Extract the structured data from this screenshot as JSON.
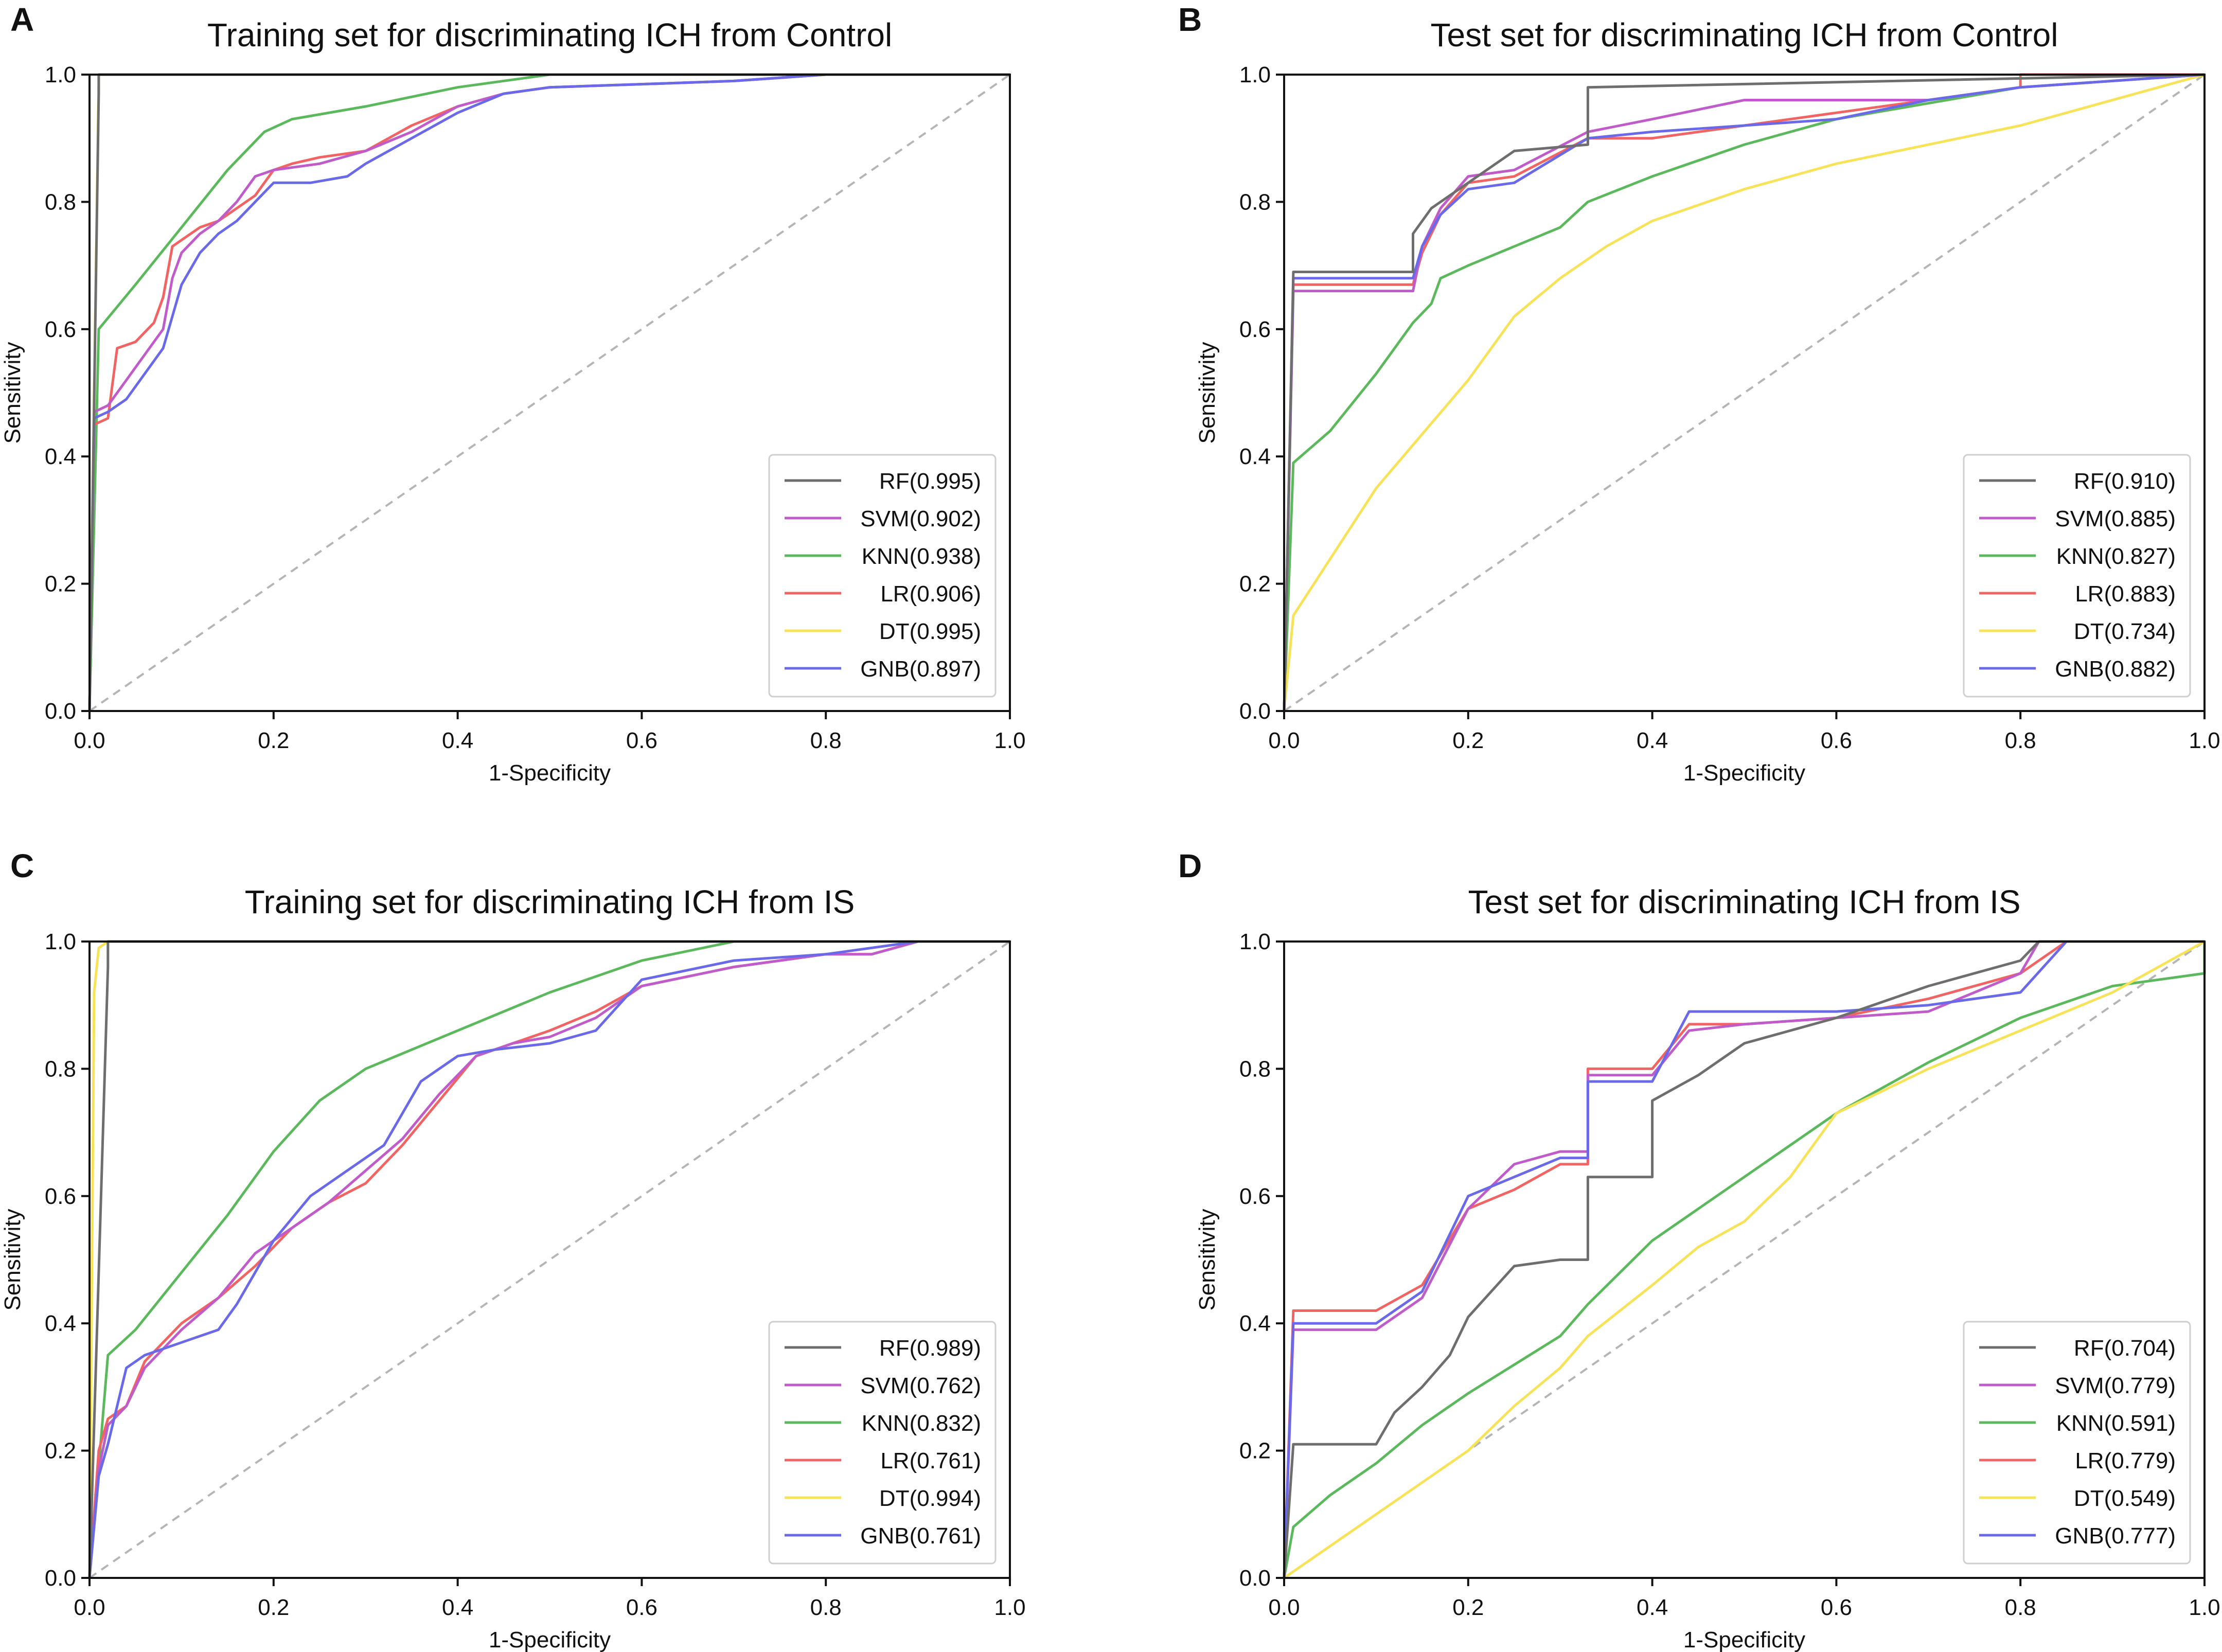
{
  "figure": {
    "panels": [
      "A",
      "B",
      "C",
      "D"
    ]
  },
  "colors": {
    "RF": "#6e6e6e",
    "SVM": "#c05cc9",
    "KNN": "#5cb85c",
    "LR": "#f06464",
    "DT": "#f7e35a",
    "GNB": "#6a6ae8",
    "diagonal": "#b5b5b5",
    "axis": "#111111"
  },
  "chart_data": [
    {
      "panel": "A",
      "type": "line",
      "title": "Training set for discriminating ICH from Control",
      "xlabel": "1-Specificity",
      "ylabel": "Sensitivity",
      "xlim": [
        0.0,
        1.0
      ],
      "ylim": [
        0.0,
        1.0
      ],
      "xticks": [
        "0.0",
        "0.2",
        "0.4",
        "0.6",
        "0.8",
        "1.0"
      ],
      "yticks": [
        "0.0",
        "0.2",
        "0.4",
        "0.6",
        "0.8",
        "1.0"
      ],
      "legend_position": "bottom-right",
      "legend": [
        "RF(0.995)",
        "SVM(0.902)",
        "KNN(0.938)",
        "LR(0.906)",
        "DT(0.995)",
        "GNB(0.897)"
      ],
      "series": [
        {
          "name": "RF",
          "x": [
            0,
            0.01,
            0.01,
            1
          ],
          "y": [
            0,
            0.97,
            1,
            1
          ]
        },
        {
          "name": "SVM",
          "x": [
            0,
            0.005,
            0.02,
            0.04,
            0.06,
            0.08,
            0.09,
            0.1,
            0.12,
            0.14,
            0.16,
            0.18,
            0.2,
            0.25,
            0.3,
            0.35,
            0.4,
            0.45,
            0.5,
            0.6,
            0.7,
            0.75,
            0.8,
            1
          ],
          "y": [
            0,
            0.47,
            0.48,
            0.52,
            0.56,
            0.6,
            0.68,
            0.72,
            0.75,
            0.77,
            0.8,
            0.84,
            0.85,
            0.86,
            0.88,
            0.91,
            0.95,
            0.97,
            0.98,
            0.985,
            0.99,
            0.995,
            1,
            1
          ]
        },
        {
          "name": "KNN",
          "x": [
            0,
            0.01,
            0.05,
            0.1,
            0.15,
            0.19,
            0.22,
            0.3,
            0.4,
            0.5,
            0.6,
            1
          ],
          "y": [
            0,
            0.6,
            0.67,
            0.76,
            0.85,
            0.91,
            0.93,
            0.95,
            0.98,
            1,
            1,
            1
          ]
        },
        {
          "name": "LR",
          "x": [
            0,
            0.005,
            0.02,
            0.03,
            0.05,
            0.07,
            0.08,
            0.09,
            0.1,
            0.12,
            0.14,
            0.16,
            0.18,
            0.2,
            0.22,
            0.25,
            0.3,
            0.35,
            0.4,
            0.45,
            0.5,
            0.6,
            0.7,
            0.8,
            1
          ],
          "y": [
            0,
            0.45,
            0.46,
            0.57,
            0.58,
            0.61,
            0.65,
            0.73,
            0.74,
            0.76,
            0.77,
            0.79,
            0.81,
            0.85,
            0.86,
            0.87,
            0.88,
            0.92,
            0.95,
            0.97,
            0.98,
            0.985,
            0.99,
            1,
            1
          ]
        },
        {
          "name": "DT",
          "x": [
            0,
            0.01,
            0.01,
            1
          ],
          "y": [
            0,
            0.99,
            1,
            1
          ]
        },
        {
          "name": "GNB",
          "x": [
            0,
            0.005,
            0.02,
            0.04,
            0.06,
            0.08,
            0.1,
            0.12,
            0.14,
            0.16,
            0.18,
            0.2,
            0.24,
            0.28,
            0.3,
            0.35,
            0.4,
            0.45,
            0.5,
            0.6,
            0.7,
            0.8,
            1
          ],
          "y": [
            0,
            0.46,
            0.47,
            0.49,
            0.53,
            0.57,
            0.67,
            0.72,
            0.75,
            0.77,
            0.8,
            0.83,
            0.83,
            0.84,
            0.86,
            0.9,
            0.94,
            0.97,
            0.98,
            0.985,
            0.99,
            1,
            1
          ]
        },
        {
          "name": "diagonal",
          "x": [
            0,
            1
          ],
          "y": [
            0,
            1
          ]
        }
      ]
    },
    {
      "panel": "B",
      "type": "line",
      "title": "Test set for discriminating ICH from Control",
      "xlabel": "1-Specificity",
      "ylabel": "Sensitivity",
      "xlim": [
        0.0,
        1.0
      ],
      "ylim": [
        0.0,
        1.0
      ],
      "xticks": [
        "0.0",
        "0.2",
        "0.4",
        "0.6",
        "0.8",
        "1.0"
      ],
      "yticks": [
        "0.0",
        "0.2",
        "0.4",
        "0.6",
        "0.8",
        "1.0"
      ],
      "legend_position": "bottom-right",
      "legend": [
        "RF(0.910)",
        "SVM(0.885)",
        "KNN(0.827)",
        "LR(0.883)",
        "DT(0.734)",
        "GNB(0.882)"
      ],
      "series": [
        {
          "name": "RF",
          "x": [
            0,
            0.01,
            0.14,
            0.14,
            0.16,
            0.18,
            0.2,
            0.25,
            0.33,
            0.33,
            1
          ],
          "y": [
            0,
            0.69,
            0.69,
            0.75,
            0.79,
            0.81,
            0.83,
            0.88,
            0.89,
            0.98,
            1
          ]
        },
        {
          "name": "SVM",
          "x": [
            0,
            0.01,
            0.14,
            0.15,
            0.17,
            0.2,
            0.25,
            0.33,
            0.4,
            0.5,
            0.7,
            0.8,
            1
          ],
          "y": [
            0,
            0.66,
            0.66,
            0.73,
            0.79,
            0.84,
            0.85,
            0.91,
            0.93,
            0.96,
            0.96,
            0.98,
            1
          ]
        },
        {
          "name": "KNN",
          "x": [
            0,
            0.01,
            0.05,
            0.1,
            0.14,
            0.16,
            0.17,
            0.2,
            0.25,
            0.3,
            0.33,
            0.4,
            0.5,
            0.6,
            0.8,
            1
          ],
          "y": [
            0,
            0.39,
            0.44,
            0.53,
            0.61,
            0.64,
            0.68,
            0.7,
            0.73,
            0.76,
            0.8,
            0.84,
            0.89,
            0.93,
            0.98,
            1
          ]
        },
        {
          "name": "LR",
          "x": [
            0,
            0.01,
            0.14,
            0.15,
            0.17,
            0.2,
            0.25,
            0.33,
            0.4,
            0.5,
            0.6,
            0.7,
            0.8,
            0.8,
            1
          ],
          "y": [
            0,
            0.67,
            0.67,
            0.72,
            0.78,
            0.83,
            0.84,
            0.9,
            0.9,
            0.92,
            0.94,
            0.96,
            0.98,
            1,
            1
          ]
        },
        {
          "name": "DT",
          "x": [
            0,
            0.01,
            0.1,
            0.2,
            0.25,
            0.3,
            0.35,
            0.4,
            0.5,
            0.6,
            0.8,
            1
          ],
          "y": [
            0,
            0.15,
            0.35,
            0.52,
            0.62,
            0.68,
            0.73,
            0.77,
            0.82,
            0.86,
            0.92,
            1
          ]
        },
        {
          "name": "GNB",
          "x": [
            0,
            0.01,
            0.14,
            0.15,
            0.17,
            0.2,
            0.25,
            0.33,
            0.4,
            0.5,
            0.6,
            0.7,
            0.8,
            1
          ],
          "y": [
            0,
            0.68,
            0.68,
            0.73,
            0.78,
            0.82,
            0.83,
            0.9,
            0.91,
            0.92,
            0.93,
            0.96,
            0.98,
            1
          ]
        },
        {
          "name": "diagonal",
          "x": [
            0,
            1
          ],
          "y": [
            0,
            1
          ]
        }
      ]
    },
    {
      "panel": "C",
      "type": "line",
      "title": "Training set for discriminating ICH from IS",
      "xlabel": "1-Specificity",
      "ylabel": "Sensitivity",
      "xlim": [
        0.0,
        1.0
      ],
      "ylim": [
        0.0,
        1.0
      ],
      "xticks": [
        "0.0",
        "0.2",
        "0.4",
        "0.6",
        "0.8",
        "1.0"
      ],
      "yticks": [
        "0.0",
        "0.2",
        "0.4",
        "0.6",
        "0.8",
        "1.0"
      ],
      "legend_position": "bottom-right",
      "legend": [
        "RF(0.989)",
        "SVM(0.762)",
        "KNN(0.832)",
        "LR(0.761)",
        "DT(0.994)",
        "GNB(0.761)"
      ],
      "series": [
        {
          "name": "RF",
          "x": [
            0,
            0.02,
            0.02,
            1
          ],
          "y": [
            0,
            0.96,
            1,
            1
          ]
        },
        {
          "name": "SVM",
          "x": [
            0,
            0.01,
            0.02,
            0.04,
            0.06,
            0.1,
            0.14,
            0.18,
            0.22,
            0.26,
            0.3,
            0.34,
            0.38,
            0.42,
            0.46,
            0.5,
            0.55,
            0.6,
            0.7,
            0.8,
            0.85,
            0.9,
            1
          ],
          "y": [
            0,
            0.17,
            0.24,
            0.27,
            0.33,
            0.39,
            0.44,
            0.51,
            0.55,
            0.59,
            0.64,
            0.69,
            0.76,
            0.82,
            0.84,
            0.85,
            0.88,
            0.93,
            0.96,
            0.98,
            0.98,
            1,
            1
          ]
        },
        {
          "name": "KNN",
          "x": [
            0,
            0.02,
            0.05,
            0.1,
            0.15,
            0.2,
            0.25,
            0.3,
            0.4,
            0.5,
            0.6,
            0.7,
            0.8,
            1
          ],
          "y": [
            0,
            0.35,
            0.39,
            0.48,
            0.57,
            0.67,
            0.75,
            0.8,
            0.86,
            0.92,
            0.97,
            1,
            1,
            1
          ]
        },
        {
          "name": "LR",
          "x": [
            0,
            0.01,
            0.02,
            0.04,
            0.06,
            0.1,
            0.14,
            0.18,
            0.22,
            0.26,
            0.3,
            0.34,
            0.38,
            0.42,
            0.46,
            0.5,
            0.55,
            0.6,
            0.7,
            0.8,
            0.85,
            0.9,
            1
          ],
          "y": [
            0,
            0.2,
            0.25,
            0.27,
            0.34,
            0.4,
            0.44,
            0.49,
            0.55,
            0.59,
            0.62,
            0.68,
            0.75,
            0.82,
            0.84,
            0.86,
            0.89,
            0.93,
            0.96,
            0.98,
            0.98,
            1,
            1
          ]
        },
        {
          "name": "DT",
          "x": [
            0,
            0.005,
            0.01,
            0.02,
            1
          ],
          "y": [
            0,
            0.92,
            0.99,
            1,
            1
          ]
        },
        {
          "name": "GNB",
          "x": [
            0,
            0.01,
            0.02,
            0.04,
            0.06,
            0.1,
            0.14,
            0.16,
            0.2,
            0.24,
            0.28,
            0.32,
            0.36,
            0.4,
            0.44,
            0.5,
            0.55,
            0.6,
            0.7,
            0.8,
            0.9,
            1
          ],
          "y": [
            0,
            0.16,
            0.21,
            0.33,
            0.35,
            0.37,
            0.39,
            0.43,
            0.53,
            0.6,
            0.64,
            0.68,
            0.78,
            0.82,
            0.83,
            0.84,
            0.86,
            0.94,
            0.97,
            0.98,
            1,
            1
          ]
        },
        {
          "name": "diagonal",
          "x": [
            0,
            1
          ],
          "y": [
            0,
            1
          ]
        }
      ]
    },
    {
      "panel": "D",
      "type": "line",
      "title": "Test set for discriminating ICH from IS",
      "xlabel": "1-Specificity",
      "ylabel": "Sensitivity",
      "xlim": [
        0.0,
        1.0
      ],
      "ylim": [
        0.0,
        1.0
      ],
      "xticks": [
        "0.0",
        "0.2",
        "0.4",
        "0.6",
        "0.8",
        "1.0"
      ],
      "yticks": [
        "0.0",
        "0.2",
        "0.4",
        "0.6",
        "0.8",
        "1.0"
      ],
      "legend_position": "bottom-right",
      "legend": [
        "RF(0.704)",
        "SVM(0.779)",
        "KNN(0.591)",
        "LR(0.779)",
        "DT(0.549)",
        "GNB(0.777)"
      ],
      "series": [
        {
          "name": "RF",
          "x": [
            0,
            0.01,
            0.1,
            0.12,
            0.15,
            0.18,
            0.2,
            0.25,
            0.3,
            0.33,
            0.33,
            0.4,
            0.4,
            0.45,
            0.5,
            0.6,
            0.7,
            0.8,
            0.82,
            1
          ],
          "y": [
            0,
            0.21,
            0.21,
            0.26,
            0.3,
            0.35,
            0.41,
            0.49,
            0.5,
            0.5,
            0.63,
            0.63,
            0.75,
            0.79,
            0.84,
            0.88,
            0.93,
            0.97,
            1,
            1
          ]
        },
        {
          "name": "SVM",
          "x": [
            0,
            0.01,
            0.1,
            0.15,
            0.2,
            0.25,
            0.3,
            0.33,
            0.33,
            0.4,
            0.44,
            0.5,
            0.6,
            0.7,
            0.8,
            0.82,
            1
          ],
          "y": [
            0,
            0.39,
            0.39,
            0.44,
            0.58,
            0.65,
            0.67,
            0.67,
            0.79,
            0.79,
            0.86,
            0.87,
            0.88,
            0.89,
            0.95,
            1,
            1
          ]
        },
        {
          "name": "KNN",
          "x": [
            0,
            0.01,
            0.05,
            0.1,
            0.15,
            0.2,
            0.3,
            0.33,
            0.4,
            0.5,
            0.6,
            0.7,
            0.8,
            0.9,
            1.0,
            1.0
          ],
          "y": [
            0,
            0.08,
            0.13,
            0.18,
            0.24,
            0.29,
            0.38,
            0.43,
            0.53,
            0.63,
            0.73,
            0.81,
            0.88,
            0.93,
            0.95,
            1
          ]
        },
        {
          "name": "LR",
          "x": [
            0,
            0.01,
            0.1,
            0.15,
            0.2,
            0.25,
            0.3,
            0.33,
            0.33,
            0.4,
            0.44,
            0.5,
            0.6,
            0.7,
            0.8,
            0.85,
            1
          ],
          "y": [
            0,
            0.42,
            0.42,
            0.46,
            0.58,
            0.61,
            0.65,
            0.65,
            0.8,
            0.8,
            0.87,
            0.87,
            0.88,
            0.91,
            0.95,
            1,
            1
          ]
        },
        {
          "name": "DT",
          "x": [
            0,
            0.1,
            0.2,
            0.25,
            0.3,
            0.33,
            0.4,
            0.45,
            0.5,
            0.55,
            0.57,
            0.6,
            0.7,
            0.8,
            0.9,
            1
          ],
          "y": [
            0,
            0.1,
            0.2,
            0.27,
            0.33,
            0.38,
            0.46,
            0.52,
            0.56,
            0.63,
            0.67,
            0.73,
            0.8,
            0.86,
            0.92,
            1
          ]
        },
        {
          "name": "GNB",
          "x": [
            0,
            0.01,
            0.1,
            0.15,
            0.2,
            0.25,
            0.3,
            0.33,
            0.33,
            0.4,
            0.44,
            0.5,
            0.6,
            0.7,
            0.8,
            0.85,
            1
          ],
          "y": [
            0,
            0.4,
            0.4,
            0.45,
            0.6,
            0.63,
            0.66,
            0.66,
            0.78,
            0.78,
            0.89,
            0.89,
            0.89,
            0.9,
            0.92,
            1,
            1
          ]
        },
        {
          "name": "diagonal",
          "x": [
            0,
            1
          ],
          "y": [
            0,
            1
          ]
        }
      ]
    }
  ]
}
